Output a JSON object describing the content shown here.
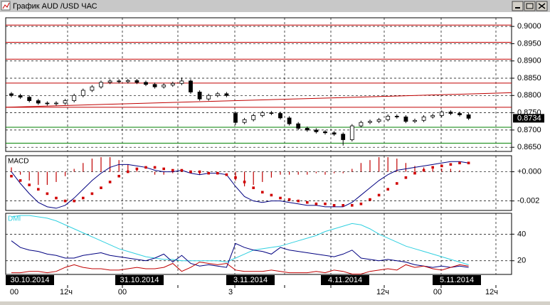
{
  "window": {
    "title": "График AUD /USD ЧАС"
  },
  "chart_data": [
    {
      "type": "candlestick",
      "open": [
        0.8805,
        0.88,
        0.8795,
        0.8785,
        0.8778,
        0.8776,
        0.8778,
        0.8785,
        0.88,
        0.8815,
        0.8825,
        0.8838,
        0.8842,
        0.884,
        0.8843,
        0.8838,
        0.8832,
        0.8825,
        0.883,
        0.8835,
        0.8842,
        0.881,
        0.879,
        0.88,
        0.8805,
        0.8748,
        0.8722,
        0.873,
        0.8742,
        0.875,
        0.8748,
        0.8735,
        0.8718,
        0.8705,
        0.87,
        0.8695,
        0.8692,
        0.8688,
        0.8672,
        0.8712,
        0.8722,
        0.8725,
        0.873,
        0.874,
        0.8738,
        0.8725,
        0.8728,
        0.8738,
        0.8742,
        0.8752,
        0.8748,
        0.8744
      ],
      "high": [
        0.881,
        0.8805,
        0.88,
        0.879,
        0.8783,
        0.8783,
        0.879,
        0.8805,
        0.882,
        0.883,
        0.8843,
        0.8847,
        0.8847,
        0.8848,
        0.8848,
        0.8843,
        0.8837,
        0.8835,
        0.884,
        0.8852,
        0.8847,
        0.8815,
        0.8805,
        0.881,
        0.881,
        0.8753,
        0.8735,
        0.8747,
        0.8755,
        0.8755,
        0.8753,
        0.874,
        0.8723,
        0.871,
        0.8705,
        0.87,
        0.8697,
        0.8693,
        0.8717,
        0.8727,
        0.873,
        0.8735,
        0.8745,
        0.8745,
        0.8743,
        0.8733,
        0.8743,
        0.8747,
        0.8757,
        0.8757,
        0.8753,
        0.8749
      ],
      "low": [
        0.8795,
        0.879,
        0.878,
        0.8773,
        0.8771,
        0.8771,
        0.8773,
        0.878,
        0.8795,
        0.881,
        0.882,
        0.8833,
        0.8835,
        0.8835,
        0.8833,
        0.8827,
        0.882,
        0.882,
        0.8825,
        0.883,
        0.8805,
        0.8785,
        0.8785,
        0.8795,
        0.8795,
        0.8715,
        0.8717,
        0.8725,
        0.8737,
        0.8743,
        0.873,
        0.8713,
        0.87,
        0.8695,
        0.869,
        0.8687,
        0.8683,
        0.8655,
        0.8667,
        0.8707,
        0.8717,
        0.872,
        0.8725,
        0.8733,
        0.872,
        0.872,
        0.8723,
        0.8733,
        0.8737,
        0.8743,
        0.8739,
        0.8729
      ],
      "close": [
        0.88,
        0.8795,
        0.8785,
        0.8778,
        0.8776,
        0.8778,
        0.8785,
        0.88,
        0.8815,
        0.8825,
        0.8838,
        0.8842,
        0.884,
        0.8843,
        0.8838,
        0.8832,
        0.8825,
        0.883,
        0.8835,
        0.8842,
        0.881,
        0.879,
        0.88,
        0.8805,
        0.88,
        0.8722,
        0.873,
        0.8742,
        0.875,
        0.8748,
        0.8735,
        0.8718,
        0.8705,
        0.87,
        0.8695,
        0.8692,
        0.8688,
        0.8672,
        0.8712,
        0.8722,
        0.8725,
        0.873,
        0.874,
        0.8738,
        0.8725,
        0.8728,
        0.8738,
        0.8742,
        0.8752,
        0.8748,
        0.8744,
        0.8734
      ],
      "ylim": [
        0.8638,
        0.9025
      ],
      "yticks": [
        {
          "value": 0.9,
          "label": "0.9000"
        },
        {
          "value": 0.895,
          "label": "0.8950"
        },
        {
          "value": 0.89,
          "label": "0.8900"
        },
        {
          "value": 0.885,
          "label": "0.8850"
        },
        {
          "value": 0.88,
          "label": "0.8800"
        },
        {
          "value": 0.875,
          "label": "0.8750"
        },
        {
          "value": 0.87,
          "label": "0.8700"
        },
        {
          "value": 0.865,
          "label": "0.8650"
        }
      ],
      "last_price_label": "0.8734",
      "red_levels": [
        0.9004,
        0.8954,
        0.8905,
        0.8836,
        0.8766
      ],
      "green_levels": [
        0.8708,
        0.8662
      ],
      "trendline": [
        0.8766,
        0.8808
      ],
      "grid": true
    },
    {
      "type": "macd",
      "title": "MACD",
      "histogram": [
        0.0003,
        -0.0002,
        -0.0006,
        -0.0009,
        -0.0009,
        -0.0007,
        -0.0003,
        0.0002,
        0.0006,
        0.0009,
        0.001,
        0.001,
        0.0008,
        0.0005,
        0.0002,
        0.0,
        -0.0002,
        -0.0002,
        -0.0001,
        0.0,
        -0.0001,
        -0.0002,
        0.0,
        0.0,
        0.0,
        -0.0006,
        -0.001,
        -0.0009,
        -0.0007,
        -0.0004,
        -0.0002,
        -0.0002,
        -0.0002,
        -0.0002,
        -0.0001,
        -0.0002,
        -0.0001,
        -0.0001,
        0.0002,
        0.0006,
        0.0008,
        0.001,
        0.001,
        0.0009,
        0.0006,
        0.0004,
        0.0003,
        0.0002,
        0.0002,
        0.0002,
        0.0001,
        0.0
      ],
      "macd": [
        0.0,
        -0.0008,
        -0.0015,
        -0.0021,
        -0.0024,
        -0.0025,
        -0.0023,
        -0.0018,
        -0.0012,
        -0.0006,
        -0.0001,
        0.0003,
        0.0005,
        0.0005,
        0.0004,
        0.0003,
        0.0001,
        0.0,
        0.0,
        0.0001,
        -0.0001,
        -0.0002,
        -0.0001,
        -0.0001,
        -0.0002,
        -0.001,
        -0.0017,
        -0.002,
        -0.0021,
        -0.002,
        -0.002,
        -0.0021,
        -0.0022,
        -0.0023,
        -0.0023,
        -0.0024,
        -0.0024,
        -0.0024,
        -0.0021,
        -0.0016,
        -0.0011,
        -0.0006,
        -0.0002,
        0.0001,
        0.0002,
        0.0003,
        0.0004,
        0.0005,
        0.0006,
        0.0007,
        0.0007,
        0.0006
      ],
      "signal": [
        -0.0003,
        -0.0006,
        -0.0009,
        -0.0012,
        -0.0015,
        -0.0018,
        -0.002,
        -0.002,
        -0.0018,
        -0.0015,
        -0.0011,
        -0.0007,
        -0.0003,
        0.0,
        0.0002,
        0.0003,
        0.0003,
        0.0002,
        0.0001,
        0.0001,
        0.0,
        0.0,
        -0.0001,
        -0.0001,
        -0.0002,
        -0.0004,
        -0.0007,
        -0.0011,
        -0.0014,
        -0.0016,
        -0.0018,
        -0.0019,
        -0.002,
        -0.0021,
        -0.0022,
        -0.0022,
        -0.0023,
        -0.0023,
        -0.0023,
        -0.0022,
        -0.0019,
        -0.0016,
        -0.0012,
        -0.0008,
        -0.0004,
        -0.0001,
        0.0001,
        0.0003,
        0.0004,
        0.0005,
        0.0006,
        0.0006
      ],
      "ylim": [
        -0.00265,
        0.0011
      ],
      "yticks": [
        {
          "value": 0,
          "label": "+0.000"
        },
        {
          "value": -0.002,
          "label": "-0.002"
        }
      ]
    },
    {
      "type": "dmi",
      "title": "DMI",
      "adx": [
        53,
        54,
        54,
        53,
        52,
        50,
        47,
        44,
        41,
        38,
        35,
        32,
        29,
        27,
        25,
        23,
        22,
        21,
        21,
        20,
        20,
        20,
        20,
        20,
        19,
        22,
        25,
        28,
        29,
        30,
        31,
        33,
        35,
        37,
        39,
        42,
        44,
        46,
        48,
        47,
        44,
        40,
        37,
        34,
        31,
        29,
        27,
        25,
        23,
        21,
        19,
        17
      ],
      "plus_di": [
        35,
        30,
        28,
        27,
        25,
        24,
        22,
        22,
        24,
        25,
        26,
        24,
        23,
        22,
        21,
        20,
        22,
        25,
        19,
        24,
        18,
        16,
        17,
        16,
        15,
        33,
        30,
        28,
        27,
        25,
        30,
        28,
        27,
        26,
        25,
        24,
        23,
        25,
        28,
        22,
        21,
        20,
        21,
        20,
        19,
        17,
        16,
        15,
        16,
        15,
        16,
        15
      ],
      "minus_di": [
        11,
        11,
        12,
        12,
        11,
        12,
        15,
        17,
        15,
        14,
        14,
        13,
        13,
        14,
        15,
        14,
        14,
        15,
        18,
        12,
        15,
        19,
        18,
        17,
        18,
        13,
        12,
        12,
        12,
        13,
        12,
        11,
        11,
        11,
        12,
        11,
        13,
        12,
        10,
        10,
        12,
        13,
        14,
        13,
        17,
        15,
        16,
        14,
        13,
        15,
        17,
        16
      ],
      "ylim": [
        9.7,
        55.7
      ],
      "yticks": [
        40,
        20
      ]
    }
  ],
  "time_axis": {
    "dates": [
      "30.10.2014",
      "31.10.2014",
      "3.11.2014",
      "4.11.2014",
      "5.11.2014"
    ],
    "hours": [
      "00",
      "12ч",
      "00",
      "3",
      "12ч",
      "00",
      "12ч"
    ]
  }
}
